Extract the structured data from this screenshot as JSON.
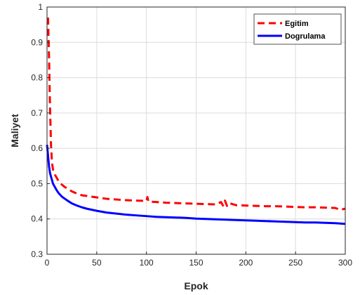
{
  "chart_data": {
    "type": "line",
    "xlabel": "Epok",
    "ylabel": "Maliyet",
    "xlim": [
      0,
      300
    ],
    "ylim": [
      0.3,
      1
    ],
    "xticks": [
      0,
      50,
      100,
      150,
      200,
      250,
      300
    ],
    "yticks": [
      0.3,
      0.4,
      0.5,
      0.6,
      0.7,
      0.8,
      0.9,
      1
    ],
    "ytick_labels": [
      "0.3",
      "0.4",
      "0.5",
      "0.6",
      "0.7",
      "0.8",
      "0.9",
      "1"
    ],
    "grid": true,
    "legend_position": "top-right",
    "series": [
      {
        "name": "Egitim",
        "color": "#ff0000",
        "style": "dashed",
        "x": [
          1,
          2,
          3,
          4,
          5,
          6,
          8,
          10,
          12,
          15,
          18,
          20,
          25,
          30,
          35,
          40,
          50,
          60,
          70,
          80,
          90,
          100,
          101,
          102,
          110,
          120,
          130,
          140,
          150,
          160,
          170,
          175,
          177,
          179,
          181,
          183,
          190,
          200,
          210,
          220,
          230,
          240,
          250,
          260,
          270,
          280,
          290,
          295,
          300
        ],
        "y": [
          0.97,
          0.86,
          0.72,
          0.61,
          0.56,
          0.54,
          0.525,
          0.515,
          0.505,
          0.497,
          0.49,
          0.487,
          0.478,
          0.472,
          0.467,
          0.465,
          0.461,
          0.457,
          0.455,
          0.453,
          0.452,
          0.451,
          0.462,
          0.449,
          0.448,
          0.446,
          0.445,
          0.444,
          0.443,
          0.442,
          0.441,
          0.448,
          0.438,
          0.452,
          0.437,
          0.445,
          0.439,
          0.438,
          0.437,
          0.436,
          0.436,
          0.435,
          0.434,
          0.433,
          0.433,
          0.432,
          0.431,
          0.426,
          0.429
        ]
      },
      {
        "name": "Dogrulama",
        "color": "#0000ff",
        "style": "solid",
        "x": [
          0,
          1,
          2,
          3,
          4,
          5,
          6,
          8,
          10,
          12,
          15,
          18,
          20,
          25,
          30,
          35,
          40,
          50,
          60,
          70,
          80,
          90,
          100,
          110,
          120,
          130,
          140,
          150,
          160,
          170,
          180,
          190,
          200,
          210,
          220,
          230,
          240,
          250,
          260,
          270,
          280,
          290,
          300
        ],
        "y": [
          0.61,
          0.58,
          0.55,
          0.53,
          0.52,
          0.51,
          0.5,
          0.49,
          0.48,
          0.472,
          0.463,
          0.457,
          0.453,
          0.444,
          0.438,
          0.433,
          0.429,
          0.423,
          0.418,
          0.415,
          0.412,
          0.41,
          0.408,
          0.406,
          0.405,
          0.404,
          0.403,
          0.401,
          0.4,
          0.399,
          0.398,
          0.397,
          0.396,
          0.395,
          0.394,
          0.393,
          0.392,
          0.391,
          0.39,
          0.39,
          0.389,
          0.388,
          0.386
        ]
      }
    ]
  }
}
